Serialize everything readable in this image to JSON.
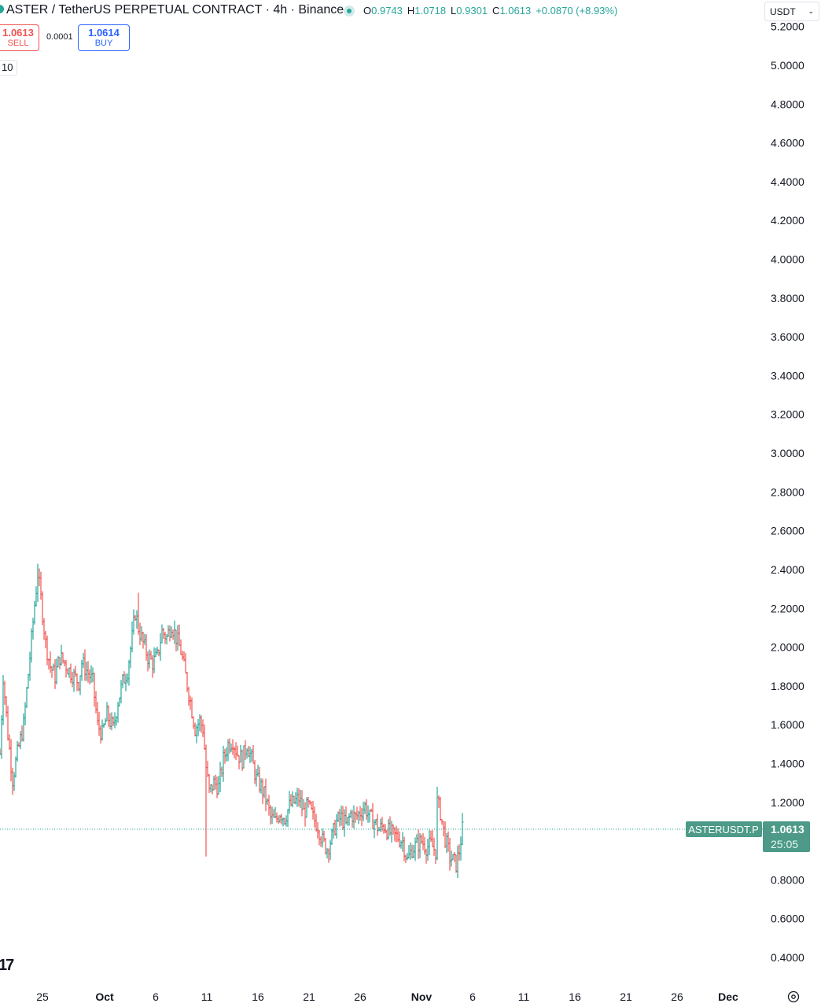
{
  "header": {
    "title": "ASTER / TetherUS PERPETUAL CONTRACT · 4h · Binance",
    "ohlc": [
      {
        "key": "O",
        "value": "0.9743"
      },
      {
        "key": "H",
        "value": "1.0718"
      },
      {
        "key": "L",
        "value": "0.9301"
      },
      {
        "key": "C",
        "value": "1.0613"
      }
    ],
    "change": "+0.0870 (+8.93%)",
    "currency": "USDT"
  },
  "trade": {
    "sell_price": "1.0613",
    "sell_label": "SELL",
    "spread": "0.0001",
    "buy_price": "1.0614",
    "buy_label": "BUY",
    "interval_badge": "10"
  },
  "colors": {
    "up": "#26a69a",
    "down": "#ef5350",
    "tag": "#4c9a87"
  },
  "chart_data": {
    "type": "ohlc",
    "ylim": [
      0.4,
      5.2
    ],
    "yticks": [
      "5.2000",
      "5.0000",
      "4.8000",
      "4.6000",
      "4.4000",
      "4.2000",
      "4.0000",
      "3.8000",
      "3.6000",
      "3.4000",
      "3.2000",
      "3.0000",
      "2.8000",
      "2.6000",
      "2.4000",
      "2.2000",
      "2.0000",
      "1.8000",
      "1.6000",
      "1.4000",
      "1.2000",
      "1.0000",
      "0.8000",
      "0.6000",
      "0.4000"
    ],
    "xticks": [
      {
        "label": "25",
        "t": 54
      },
      {
        "label": "Oct",
        "t": 133
      },
      {
        "label": "6",
        "t": 198
      },
      {
        "label": "11",
        "t": 263
      },
      {
        "label": "16",
        "t": 328
      },
      {
        "label": "21",
        "t": 393
      },
      {
        "label": "26",
        "t": 458
      },
      {
        "label": "Nov",
        "t": 536
      },
      {
        "label": "6",
        "t": 601
      },
      {
        "label": "11",
        "t": 666
      },
      {
        "label": "16",
        "t": 731
      },
      {
        "label": "21",
        "t": 796
      },
      {
        "label": "26",
        "t": 861
      },
      {
        "label": "Dec",
        "t": 926
      }
    ],
    "last_price": {
      "symbol": "ASTERUSDT.P",
      "price": "1.0613",
      "countdown": "25:05",
      "value": 1.0613
    },
    "anchors": [
      [
        0,
        1.45
      ],
      [
        4,
        1.85
      ],
      [
        10,
        1.55
      ],
      [
        16,
        1.32
      ],
      [
        22,
        1.45
      ],
      [
        30,
        1.6
      ],
      [
        38,
        1.95
      ],
      [
        44,
        2.22
      ],
      [
        48,
        2.38
      ],
      [
        52,
        2.25
      ],
      [
        58,
        2.02
      ],
      [
        64,
        1.9
      ],
      [
        70,
        1.85
      ],
      [
        76,
        1.95
      ],
      [
        82,
        1.92
      ],
      [
        88,
        1.88
      ],
      [
        94,
        1.85
      ],
      [
        100,
        1.82
      ],
      [
        104,
        1.92
      ],
      [
        110,
        1.88
      ],
      [
        118,
        1.82
      ],
      [
        124,
        1.6
      ],
      [
        130,
        1.55
      ],
      [
        136,
        1.65
      ],
      [
        144,
        1.58
      ],
      [
        150,
        1.72
      ],
      [
        156,
        1.82
      ],
      [
        162,
        1.88
      ],
      [
        168,
        2.05
      ],
      [
        172,
        2.18
      ],
      [
        176,
        2.1
      ],
      [
        182,
        2.02
      ],
      [
        188,
        1.95
      ],
      [
        194,
        1.92
      ],
      [
        200,
        1.95
      ],
      [
        206,
        2.08
      ],
      [
        212,
        2.05
      ],
      [
        218,
        2.12
      ],
      [
        224,
        2.05
      ],
      [
        230,
        1.98
      ],
      [
        236,
        1.85
      ],
      [
        242,
        1.72
      ],
      [
        248,
        1.58
      ],
      [
        254,
        1.62
      ],
      [
        258,
        1.58
      ],
      [
        262,
        1.38
      ],
      [
        266,
        1.25
      ],
      [
        272,
        1.3
      ],
      [
        278,
        1.28
      ],
      [
        284,
        1.42
      ],
      [
        290,
        1.5
      ],
      [
        296,
        1.52
      ],
      [
        302,
        1.45
      ],
      [
        308,
        1.42
      ],
      [
        314,
        1.5
      ],
      [
        320,
        1.42
      ],
      [
        326,
        1.32
      ],
      [
        332,
        1.28
      ],
      [
        338,
        1.22
      ],
      [
        344,
        1.12
      ],
      [
        350,
        1.1
      ],
      [
        356,
        1.15
      ],
      [
        362,
        1.12
      ],
      [
        368,
        1.18
      ],
      [
        374,
        1.2
      ],
      [
        380,
        1.22
      ],
      [
        386,
        1.15
      ],
      [
        392,
        1.18
      ],
      [
        398,
        1.12
      ],
      [
        404,
        1.08
      ],
      [
        410,
        1.0
      ],
      [
        416,
        0.96
      ],
      [
        422,
        1.02
      ],
      [
        428,
        1.1
      ],
      [
        434,
        1.12
      ],
      [
        440,
        1.08
      ],
      [
        446,
        1.14
      ],
      [
        452,
        1.12
      ],
      [
        458,
        1.15
      ],
      [
        464,
        1.18
      ],
      [
        470,
        1.12
      ],
      [
        476,
        1.1
      ],
      [
        482,
        1.06
      ],
      [
        488,
        1.08
      ],
      [
        494,
        1.05
      ],
      [
        500,
        1.03
      ],
      [
        506,
        1.02
      ],
      [
        512,
        1.0
      ],
      [
        518,
        0.9
      ],
      [
        524,
        0.96
      ],
      [
        530,
        0.98
      ],
      [
        536,
        1.0
      ],
      [
        542,
        0.97
      ],
      [
        548,
        0.98
      ],
      [
        554,
        0.95
      ],
      [
        556,
        1.2
      ],
      [
        560,
        1.15
      ],
      [
        564,
        1.05
      ],
      [
        568,
        0.98
      ],
      [
        572,
        0.92
      ],
      [
        576,
        0.9
      ],
      [
        580,
        0.88
      ],
      [
        584,
        0.95
      ],
      [
        588,
        1.06
      ]
    ],
    "spikes": [
      {
        "t": 262,
        "low": 0.92
      },
      {
        "t": 556,
        "high": 1.28
      },
      {
        "t": 48,
        "high": 2.43
      },
      {
        "t": 176,
        "high": 2.28
      }
    ]
  }
}
